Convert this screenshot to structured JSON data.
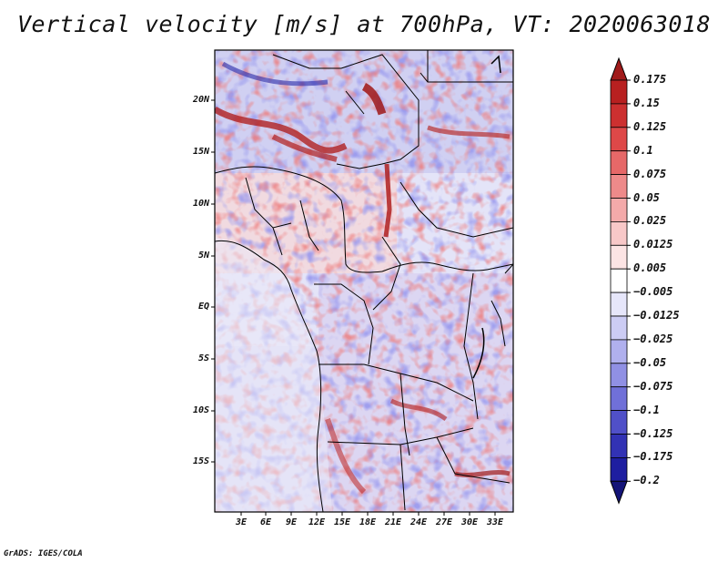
{
  "title": "Vertical velocity [m/s] at 700hPa, VT: 2020063018",
  "footer": "GrADS: IGES/COLA",
  "map": {
    "lat_ticks": [
      "20N",
      "15N",
      "10N",
      "5N",
      "EQ",
      "5S",
      "10S",
      "15S"
    ],
    "lon_ticks": [
      "3E",
      "6E",
      "9E",
      "12E",
      "15E",
      "18E",
      "21E",
      "24E",
      "27E",
      "30E",
      "33E"
    ]
  },
  "colorbar": {
    "levels": [
      "0.175",
      "0.15",
      "0.125",
      "0.1",
      "0.075",
      "0.05",
      "0.025",
      "0.0125",
      "0.005",
      "−0.005",
      "−0.0125",
      "−0.025",
      "−0.05",
      "−0.075",
      "−0.1",
      "−0.125",
      "−0.175",
      "−0.2"
    ],
    "colors": [
      "#a01a1a",
      "#b82020",
      "#cc3030",
      "#de4848",
      "#e66868",
      "#ee8a8a",
      "#f4aaaa",
      "#f8c8c8",
      "#fce4e4",
      "#ffffff",
      "#e6e6fa",
      "#ccccf4",
      "#b0b0ee",
      "#9090e4",
      "#7070d8",
      "#5050c8",
      "#3232b4",
      "#1e1ea0",
      "#141478"
    ]
  }
}
